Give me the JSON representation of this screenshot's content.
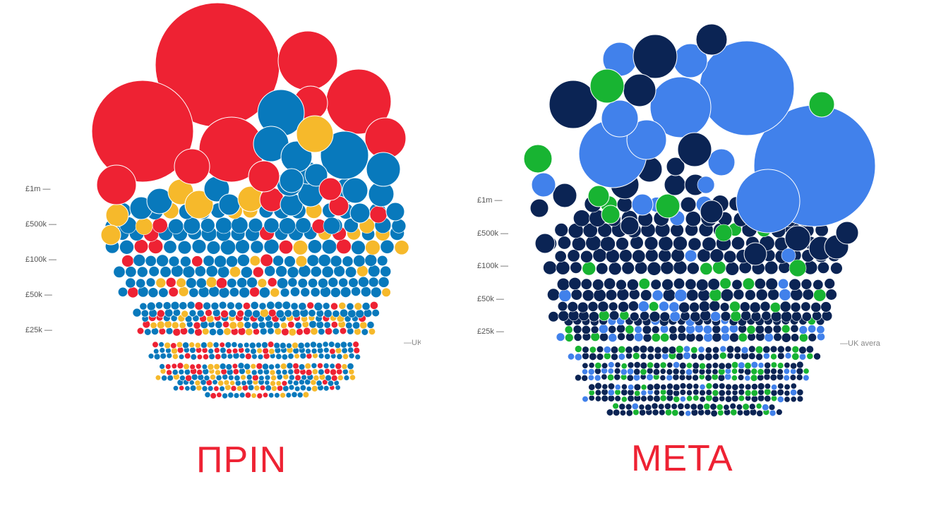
{
  "colors": {
    "before": [
      "#ee2233",
      "#f6b92b",
      "#0879bc"
    ],
    "after": [
      "#0b2454",
      "#4181eb",
      "#18b432"
    ],
    "caption": "#ee2233",
    "tick_text": "#555555",
    "ref_text": "#888888"
  },
  "chart_data": [
    {
      "type": "bubble-swarm",
      "title": "ΠΡΙΝ",
      "y_scale": "log",
      "y_ticks": [
        "£1m —",
        "£500k —",
        "£100k —",
        "£50k —",
        "£25k —"
      ],
      "reference_label": "—UK",
      "palette": [
        "red",
        "amber",
        "blue"
      ],
      "big_bubbles": [
        {
          "label": "large-1",
          "color": "red"
        },
        {
          "label": "large-2",
          "color": "red"
        },
        {
          "label": "large-3",
          "color": "red"
        },
        {
          "label": "large-4",
          "color": "red"
        },
        {
          "label": "large-5",
          "color": "red"
        },
        {
          "label": "large-6",
          "color": "blue"
        },
        {
          "label": "large-7",
          "color": "blue"
        },
        {
          "label": "large-8",
          "color": "amber"
        }
      ]
    },
    {
      "type": "bubble-swarm",
      "title": "ΜΕΤΑ",
      "y_scale": "log",
      "y_ticks": [
        "£1m —",
        "£500k —",
        "£100k —",
        "£50k —",
        "£25k —"
      ],
      "reference_label": "—UK avera",
      "palette": [
        "navy",
        "blue",
        "green"
      ],
      "big_bubbles": [
        {
          "label": "large-1",
          "color": "blue"
        },
        {
          "label": "large-2",
          "color": "blue"
        },
        {
          "label": "large-3",
          "color": "blue"
        },
        {
          "label": "large-4",
          "color": "navy"
        },
        {
          "label": "large-5",
          "color": "navy"
        },
        {
          "label": "large-6",
          "color": "green"
        },
        {
          "label": "large-7",
          "color": "blue"
        }
      ]
    }
  ],
  "captions": {
    "before": "ΠΡΙΝ",
    "after": "ΜΕΤΑ"
  }
}
